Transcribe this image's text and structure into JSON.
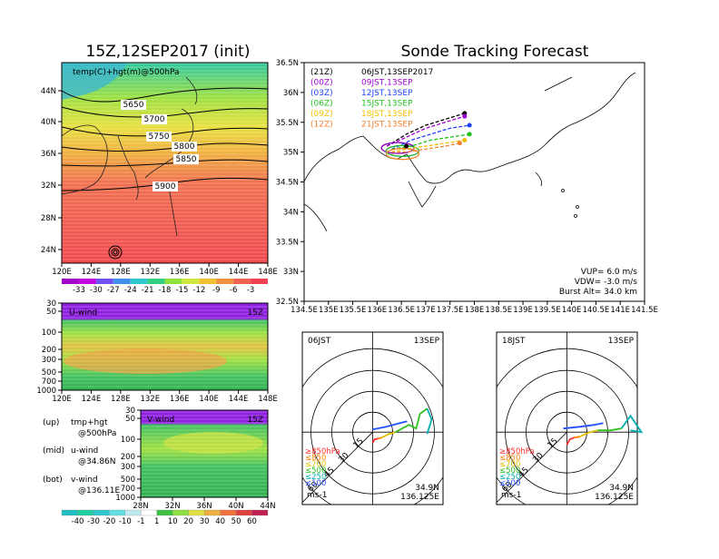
{
  "left_title": "15Z,12SEP2017 (init)",
  "right_title": "Sonde Tracking Forecast",
  "map500": {
    "label": "temp(C)+hgt(m)@500hPa",
    "x_ticks": [
      "120E",
      "124E",
      "128E",
      "132E",
      "136E",
      "140E",
      "144E",
      "148E"
    ],
    "y_ticks": [
      "44N",
      "40N",
      "36N",
      "32N",
      "28N",
      "24N"
    ],
    "contours": [
      "5650",
      "5700",
      "5750",
      "5800",
      "5850",
      "5900"
    ],
    "colorbar_labels": [
      "-33",
      "-30",
      "-27",
      "-24",
      "-21",
      "-18",
      "-15",
      "-12",
      "-9",
      "-6",
      "-3"
    ],
    "colorbar_colors": [
      "#a000c8",
      "#c000e0",
      "#7050f0",
      "#4090f0",
      "#30c8d0",
      "#30d080",
      "#90e040",
      "#d0e840",
      "#f0c030",
      "#f09040",
      "#f06050",
      "#f04050"
    ]
  },
  "uwind": {
    "label": "U-wind",
    "time": "15Z",
    "y_ticks": [
      "30",
      "50",
      "100",
      "200",
      "300",
      "500",
      "700",
      "1000"
    ],
    "x_ticks": [
      "120E",
      "124E",
      "128E",
      "132E",
      "136E",
      "140E",
      "144E",
      "148E"
    ]
  },
  "vwind": {
    "label": "V-wind",
    "time": "15Z",
    "y_ticks": [
      "30",
      "50",
      "100",
      "200",
      "300",
      "500",
      "700",
      "1000"
    ],
    "x_ticks": [
      "28N",
      "32N",
      "36N",
      "40N",
      "44N"
    ],
    "colorbar_labels": [
      "-40",
      "-30",
      "-20",
      "-10",
      "-1",
      "1",
      "10",
      "20",
      "30",
      "40",
      "50",
      "60"
    ]
  },
  "legend_notes": [
    {
      "pos": "(up)",
      "text": "tmp+hgt"
    },
    {
      "pos": "",
      "text": "@500hPa"
    },
    {
      "pos": "(mid)",
      "text": "u-wind"
    },
    {
      "pos": "",
      "text": "@34.86N"
    },
    {
      "pos": "(bot)",
      "text": "v-wind"
    },
    {
      "pos": "",
      "text": "@136.11E"
    }
  ],
  "track_map": {
    "x_ticks": [
      "134.5E",
      "135E",
      "135.5E",
      "136E",
      "136.5E",
      "137E",
      "137.5E",
      "138E",
      "138.5E",
      "139E",
      "139.5E",
      "140E",
      "140.5E",
      "141E",
      "141.5E"
    ],
    "y_ticks": [
      "36.5N",
      "36N",
      "35.5N",
      "35N",
      "34.5N",
      "34N",
      "33.5N",
      "33N",
      "32.5N"
    ],
    "legend": [
      {
        "utc": "(21Z)",
        "jst": "06JST,13SEP2017",
        "color": "#000000"
      },
      {
        "utc": "(00Z)",
        "jst": "09JST,13SEP",
        "color": "#a000d0"
      },
      {
        "utc": "(03Z)",
        "jst": "12JST,13SEP",
        "color": "#2040ff"
      },
      {
        "utc": "(06Z)",
        "jst": "15JST,13SEP",
        "color": "#20c020"
      },
      {
        "utc": "(09Z)",
        "jst": "18JST,13SEP",
        "color": "#f0c000"
      },
      {
        "utc": "(12Z)",
        "jst": "21JST,13SEP",
        "color": "#f08030"
      }
    ],
    "params": [
      "VUP= 6.0 m/s",
      "VDW= -3.0 m/s",
      "Burst Alt= 34.0 km"
    ]
  },
  "hodo1": {
    "time_label": "06JST",
    "date_label": "13SEP",
    "lat": "34.9N",
    "lon": "136.125E",
    "unit": "ms-1",
    "ring_labels": [
      "15",
      "30",
      "45",
      "60"
    ],
    "levels": [
      {
        "label": "≥850hPa",
        "color": "#ff3030"
      },
      {
        "label": "≤850",
        "color": "#ff8000"
      },
      {
        "label": "≤700",
        "color": "#e0c000"
      },
      {
        "label": "≤500",
        "color": "#30c020"
      },
      {
        "label": "≤250",
        "color": "#00b0b0"
      },
      {
        "label": "≤100",
        "color": "#2050ff"
      }
    ]
  },
  "hodo2": {
    "time_label": "18JST",
    "date_label": "13SEP",
    "lat": "34.9N",
    "lon": "136.125E",
    "unit": "ms-1",
    "ring_labels": [
      "15",
      "30",
      "45",
      "60"
    ],
    "levels": [
      {
        "label": "≥850hPa",
        "color": "#ff3030"
      },
      {
        "label": "≤850",
        "color": "#ff8000"
      },
      {
        "label": "≤700",
        "color": "#e0c000"
      },
      {
        "label": "≤500",
        "color": "#30c020"
      },
      {
        "label": "≤250",
        "color": "#00b0b0"
      },
      {
        "label": "≤100",
        "color": "#2050ff"
      }
    ]
  },
  "chart_data": [
    {
      "type": "heatmap",
      "title": "15Z,12SEP2017 (init)",
      "subtitle": "temp(C)+hgt(m)@500hPa",
      "xlim": [
        120,
        148
      ],
      "ylim": [
        22,
        47
      ],
      "contour_levels": [
        5650,
        5700,
        5750,
        5800,
        5850,
        5900
      ],
      "color_levels": [
        -33,
        -30,
        -27,
        -24,
        -21,
        -18,
        -15,
        -12,
        -9,
        -6,
        -3
      ]
    },
    {
      "type": "heatmap",
      "title": "U-wind",
      "subtitle": "15Z",
      "y_levels": [
        30,
        50,
        100,
        200,
        300,
        500,
        700,
        1000
      ],
      "xlim": [
        120,
        148
      ]
    },
    {
      "type": "heatmap",
      "title": "V-wind",
      "subtitle": "15Z",
      "y_levels": [
        30,
        50,
        100,
        200,
        300,
        500,
        700,
        1000
      ],
      "xlim": [
        28,
        44
      ],
      "color_levels": [
        -40,
        -30,
        -20,
        -10,
        -1,
        1,
        10,
        20,
        30,
        40,
        50,
        60
      ]
    },
    {
      "type": "line",
      "title": "Sonde Tracking Forecast",
      "xlim": [
        134.5,
        141.5
      ],
      "ylim": [
        32.5,
        36.5
      ],
      "series": [
        {
          "name": "(21Z) 06JST,13SEP2017",
          "x": [
            136.2,
            136.6,
            137.0,
            137.4,
            137.8
          ],
          "y": [
            35.1,
            35.3,
            35.45,
            35.55,
            35.65
          ]
        },
        {
          "name": "(00Z) 09JST,13SEP",
          "x": [
            136.2,
            136.6,
            137.0,
            137.4,
            137.8
          ],
          "y": [
            35.1,
            35.25,
            35.4,
            35.5,
            35.6
          ]
        },
        {
          "name": "(03Z) 12JST,13SEP",
          "x": [
            136.3,
            136.7,
            137.1,
            137.5,
            137.9
          ],
          "y": [
            35.05,
            35.2,
            35.3,
            35.4,
            35.45
          ]
        },
        {
          "name": "(06Z) 15JST,13SEP",
          "x": [
            136.3,
            136.7,
            137.1,
            137.5,
            137.9
          ],
          "y": [
            35.05,
            35.1,
            35.2,
            35.25,
            35.3
          ]
        },
        {
          "name": "(09Z) 18JST,13SEP",
          "x": [
            136.3,
            136.6,
            137.0,
            137.4,
            137.8
          ],
          "y": [
            35.0,
            35.05,
            35.1,
            35.15,
            35.2
          ]
        },
        {
          "name": "(12Z) 21JST,13SEP",
          "x": [
            136.3,
            136.6,
            137.0,
            137.4,
            137.7
          ],
          "y": [
            35.0,
            35.0,
            35.05,
            35.1,
            35.15
          ]
        }
      ]
    }
  ]
}
